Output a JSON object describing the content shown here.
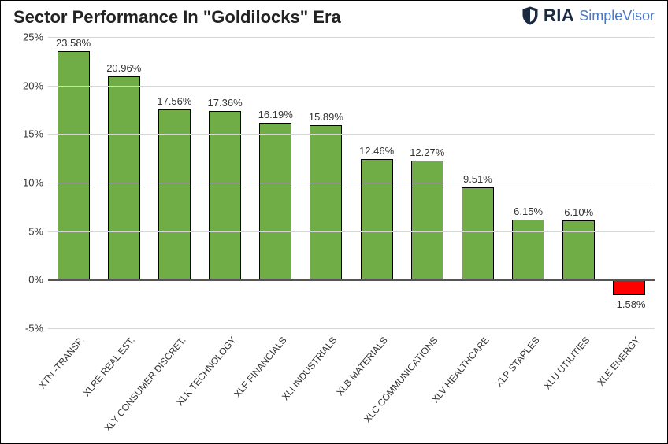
{
  "title": "Sector Performance In \"Goldilocks\" Era",
  "brand": {
    "ria": "RIA",
    "simplevisor": "SimpleVisor"
  },
  "chart": {
    "type": "bar",
    "ylim": [
      -5,
      25
    ],
    "ytick_step": 5,
    "ytick_format_suffix": "%",
    "label_format_suffix": "%",
    "grid_color": "#d6d6d6",
    "axis_color": "#555555",
    "background_color": "#ffffff",
    "positive_color": "#70ad47",
    "negative_color": "#ff0000",
    "bar_border_color": "#000000",
    "title_fontsize": 22,
    "tick_fontsize": 13,
    "xlabel_fontsize": 12,
    "datalabel_fontsize": 13,
    "xlabel_rotation_deg": -50,
    "bar_width_ratio": 0.64,
    "categories": [
      "XTN -TRANSP.",
      "XLRE REAL EST.",
      "XLY CONSUMER DISCRET.",
      "XLK TECHNOLOGY",
      "XLF FINANCIALS",
      "XLI INDUSTRIALS",
      "XLB MATERIALS",
      "XLC COMMUNICATIONS",
      "XLV HEALTHCARE",
      "XLP STAPLES",
      "XLU UTILITIES",
      "XLE ENERGY"
    ],
    "values": [
      23.58,
      20.96,
      17.56,
      17.36,
      16.19,
      15.89,
      12.46,
      12.27,
      9.51,
      6.15,
      6.1,
      -1.58
    ]
  }
}
